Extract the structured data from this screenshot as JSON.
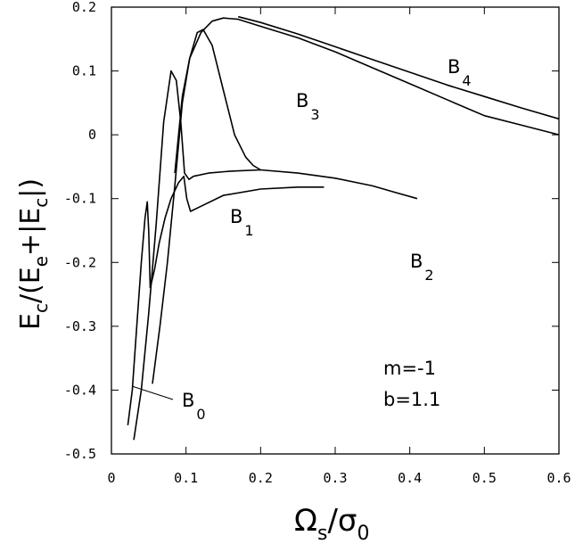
{
  "chart_data": {
    "type": "line",
    "xlabel": {
      "main": "Ω",
      "sub": "s",
      "slash": "/σ",
      "sub2": "0"
    },
    "ylabel": {
      "p1": "E",
      "s1": "c",
      "p2": "/(E",
      "s2": "e",
      "p3": "+|E",
      "s3": "c",
      "p4": "|)"
    },
    "xlim": [
      0,
      0.6
    ],
    "ylim": [
      -0.5,
      0.2
    ],
    "xticks": [
      0,
      0.1,
      0.2,
      0.3,
      0.4,
      0.5,
      0.6
    ],
    "xtick_labels": [
      "0",
      "0.1",
      "0.2",
      "0.3",
      "0.4",
      "0.5",
      "0.6"
    ],
    "yticks": [
      0.2,
      0.1,
      0,
      -0.1,
      -0.2,
      -0.3,
      -0.4,
      -0.5
    ],
    "ytick_labels": [
      "0.2",
      "0.1",
      "0",
      "-0.1",
      "-0.2",
      "-0.3",
      "-0.4",
      "-0.5"
    ],
    "grid": false,
    "annotations": [
      "m=-1",
      "b=1.1"
    ],
    "series": [
      {
        "name": "B0",
        "label_main": "B",
        "label_sub": "0",
        "x": [
          0.022,
          0.028,
          0.034,
          0.04,
          0.045,
          0.048,
          0.05,
          0.052
        ],
        "y": [
          -0.455,
          -0.4,
          -0.3,
          -0.2,
          -0.13,
          -0.105,
          -0.15,
          -0.24
        ]
      },
      {
        "name": "B1",
        "label_main": "B",
        "label_sub": "1",
        "x": [
          0.052,
          0.058,
          0.064,
          0.072,
          0.08,
          0.09,
          0.097,
          0.101,
          0.106,
          0.12,
          0.15,
          0.2,
          0.25,
          0.285
        ],
        "y": [
          -0.24,
          -0.21,
          -0.17,
          -0.13,
          -0.1,
          -0.075,
          -0.065,
          -0.1,
          -0.12,
          -0.112,
          -0.095,
          -0.085,
          -0.082,
          -0.082
        ]
      },
      {
        "name": "B2",
        "label_main": "B",
        "label_sub": "2",
        "x": [
          0.03,
          0.04,
          0.05,
          0.06,
          0.07,
          0.08,
          0.087,
          0.093,
          0.098,
          0.104,
          0.11,
          0.13,
          0.16,
          0.2,
          0.25,
          0.3,
          0.35,
          0.38,
          0.41
        ],
        "y": [
          -0.478,
          -0.4,
          -0.28,
          -0.14,
          0.02,
          0.1,
          0.085,
          0.02,
          -0.06,
          -0.07,
          -0.065,
          -0.06,
          -0.057,
          -0.055,
          -0.06,
          -0.068,
          -0.08,
          -0.09,
          -0.1
        ]
      },
      {
        "name": "B3",
        "label_main": "B",
        "label_sub": "3",
        "x": [
          0.055,
          0.065,
          0.075,
          0.085,
          0.095,
          0.105,
          0.115,
          0.123,
          0.135,
          0.15,
          0.165,
          0.18,
          0.19,
          0.2
        ],
        "y": [
          -0.39,
          -0.3,
          -0.2,
          -0.08,
          0.05,
          0.12,
          0.16,
          0.165,
          0.14,
          0.07,
          0.0,
          -0.035,
          -0.048,
          -0.055
        ]
      },
      {
        "name": "B4",
        "label_main": "B",
        "label_sub": "4",
        "x": [
          0.085,
          0.095,
          0.105,
          0.12,
          0.135,
          0.15,
          0.17,
          0.2,
          0.25,
          0.3,
          0.35,
          0.4,
          0.45,
          0.5,
          0.55,
          0.6
        ],
        "y": [
          -0.06,
          0.06,
          0.12,
          0.16,
          0.178,
          0.183,
          0.181,
          0.17,
          0.152,
          0.13,
          0.105,
          0.08,
          0.055,
          0.03,
          0.015,
          0.0
        ]
      },
      {
        "name": "B4-upper",
        "label_main": "",
        "label_sub": "",
        "x": [
          0.17,
          0.2,
          0.25,
          0.3,
          0.35,
          0.4,
          0.45,
          0.5,
          0.55,
          0.6
        ],
        "y": [
          0.185,
          0.176,
          0.158,
          0.138,
          0.118,
          0.098,
          0.078,
          0.06,
          0.042,
          0.025
        ]
      }
    ]
  }
}
